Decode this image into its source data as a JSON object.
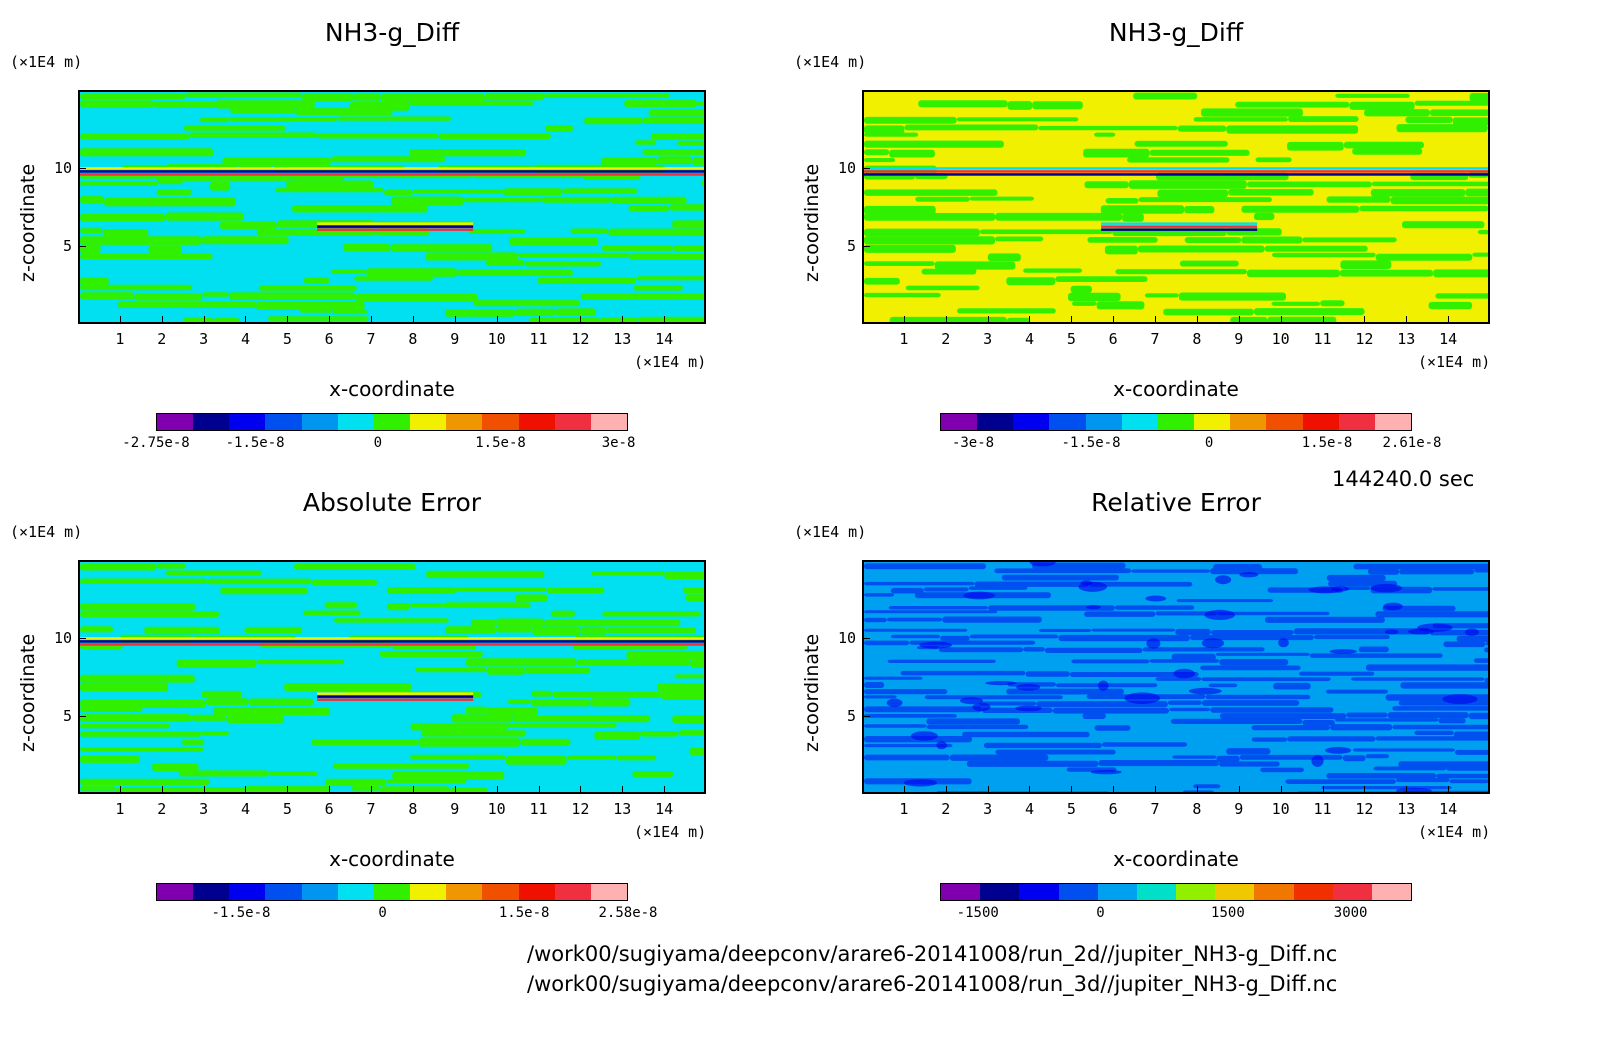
{
  "timestamp": "144240.0 sec",
  "paths": [
    "/work00/sugiyama/deepconv/arare6-20141008/run_2d//jupiter_NH3-g_Diff.nc",
    "/work00/sugiyama/deepconv/arare6-20141008/run_3d//jupiter_NH3-g_Diff.nc"
  ],
  "chart_data": [
    {
      "type": "heatmap",
      "title": "NH3-g_Diff",
      "xlabel": "x-coordinate",
      "ylabel": "z-coordinate",
      "x_unit": "(×1E4 m)",
      "z_unit": "(×1E4 m)",
      "x_ticks": [
        "1",
        "2",
        "3",
        "4",
        "5",
        "6",
        "7",
        "8",
        "9",
        "10",
        "11",
        "12",
        "13",
        "14"
      ],
      "z_ticks": [
        "5",
        "10"
      ],
      "xlim": [
        0,
        15
      ],
      "zlim": [
        0,
        15
      ],
      "colorbar_colors": [
        "#8000b0",
        "#000090",
        "#0000f0",
        "#0050f0",
        "#0096f0",
        "#00e0f0",
        "#30f000",
        "#f0f000",
        "#f09600",
        "#f05000",
        "#f01000",
        "#f03040",
        "#ffb0b0"
      ],
      "colorbar_labels": [
        {
          "text": "-2.75e-8",
          "pos": 0.0
        },
        {
          "text": "-1.5e-8",
          "pos": 0.21
        },
        {
          "text": "0",
          "pos": 0.47
        },
        {
          "text": "1.5e-8",
          "pos": 0.73
        },
        {
          "text": "3e-8",
          "pos": 0.98
        }
      ]
    },
    {
      "type": "heatmap",
      "title": "NH3-g_Diff",
      "xlabel": "x-coordinate",
      "ylabel": "z-coordinate",
      "x_unit": "(×1E4 m)",
      "z_unit": "(×1E4 m)",
      "x_ticks": [
        "1",
        "2",
        "3",
        "4",
        "5",
        "6",
        "7",
        "8",
        "9",
        "10",
        "11",
        "12",
        "13",
        "14"
      ],
      "z_ticks": [
        "5",
        "10"
      ],
      "xlim": [
        0,
        15
      ],
      "zlim": [
        0,
        15
      ],
      "colorbar_colors": [
        "#8000b0",
        "#000090",
        "#0000f0",
        "#0050f0",
        "#0096f0",
        "#00e0f0",
        "#30f000",
        "#f0f000",
        "#f09600",
        "#f05000",
        "#f01000",
        "#f03040",
        "#ffb0b0"
      ],
      "colorbar_labels": [
        {
          "text": "-3e-8",
          "pos": 0.07
        },
        {
          "text": "-1.5e-8",
          "pos": 0.32
        },
        {
          "text": "0",
          "pos": 0.57
        },
        {
          "text": "1.5e-8",
          "pos": 0.82
        },
        {
          "text": "2.61e-8",
          "pos": 1.0
        }
      ]
    },
    {
      "type": "heatmap",
      "title": "Absolute Error",
      "xlabel": "x-coordinate",
      "ylabel": "z-coordinate",
      "x_unit": "(×1E4 m)",
      "z_unit": "(×1E4 m)",
      "x_ticks": [
        "1",
        "2",
        "3",
        "4",
        "5",
        "6",
        "7",
        "8",
        "9",
        "10",
        "11",
        "12",
        "13",
        "14"
      ],
      "z_ticks": [
        "5",
        "10"
      ],
      "xlim": [
        0,
        15
      ],
      "zlim": [
        0,
        15
      ],
      "colorbar_colors": [
        "#8000b0",
        "#000090",
        "#0000f0",
        "#0050f0",
        "#0096f0",
        "#00e0f0",
        "#30f000",
        "#f0f000",
        "#f09600",
        "#f05000",
        "#f01000",
        "#f03040",
        "#ffb0b0"
      ],
      "colorbar_labels": [
        {
          "text": "-1.5e-8",
          "pos": 0.18
        },
        {
          "text": "0",
          "pos": 0.48
        },
        {
          "text": "1.5e-8",
          "pos": 0.78
        },
        {
          "text": "2.58e-8",
          "pos": 1.0
        }
      ]
    },
    {
      "type": "heatmap",
      "title": "Relative Error",
      "xlabel": "x-coordinate",
      "ylabel": "z-coordinate",
      "x_unit": "(×1E4 m)",
      "z_unit": "(×1E4 m)",
      "x_ticks": [
        "1",
        "2",
        "3",
        "4",
        "5",
        "6",
        "7",
        "8",
        "9",
        "10",
        "11",
        "12",
        "13",
        "14"
      ],
      "z_ticks": [
        "5",
        "10"
      ],
      "xlim": [
        0,
        15
      ],
      "zlim": [
        0,
        15
      ],
      "colorbar_colors": [
        "#8000b0",
        "#000090",
        "#0000f0",
        "#0050f0",
        "#00a0f0",
        "#00e0c8",
        "#90f000",
        "#f0c800",
        "#f07800",
        "#f03000",
        "#f03040",
        "#ffb0b0"
      ],
      "colorbar_labels": [
        {
          "text": "-1500",
          "pos": 0.08
        },
        {
          "text": "0",
          "pos": 0.34
        },
        {
          "text": "1500",
          "pos": 0.61
        },
        {
          "text": "3000",
          "pos": 0.87
        }
      ]
    }
  ]
}
